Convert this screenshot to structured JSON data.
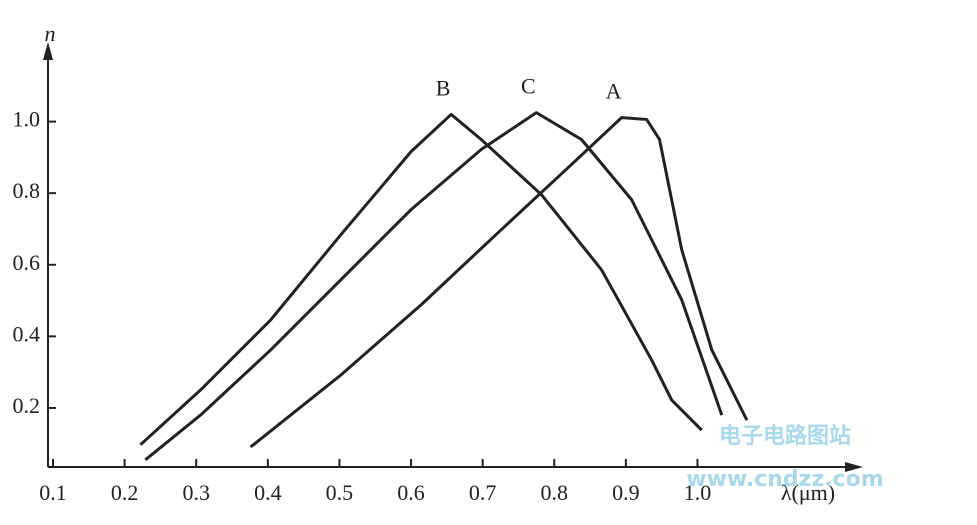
{
  "chart_data": {
    "type": "line",
    "ylabel": "n",
    "xlabel": "λ(μm)",
    "xlim": [
      0.093,
      1.22
    ],
    "ylim": [
      0.035,
      1.2
    ],
    "xticks": [
      0.1,
      0.2,
      0.3,
      0.4,
      0.5,
      0.6,
      0.7,
      0.8,
      0.9,
      {
        "value": 1,
        "label": "1.0"
      }
    ],
    "yticks": [
      0.2,
      0.4,
      0.6,
      0.8,
      {
        "value": 1,
        "label": "1.0"
      }
    ],
    "grid": false,
    "series": [
      {
        "name": "B",
        "color": "#222222",
        "x": [
          0.222,
          0.306,
          0.404,
          0.502,
          0.6,
          0.656,
          0.698,
          0.782,
          0.866,
          0.936,
          0.964,
          1.006
        ],
        "values": [
          0.097,
          0.25,
          0.446,
          0.684,
          0.916,
          1.02,
          0.95,
          0.796,
          0.586,
          0.334,
          0.222,
          0.138
        ]
      },
      {
        "name": "C",
        "color": "#222222",
        "x": [
          0.229,
          0.306,
          0.404,
          0.502,
          0.6,
          0.698,
          0.775,
          0.838,
          0.908,
          0.978,
          1.034
        ],
        "values": [
          0.055,
          0.18,
          0.362,
          0.558,
          0.754,
          0.922,
          1.025,
          0.95,
          0.782,
          0.502,
          0.18
        ]
      },
      {
        "name": "A",
        "color": "#222222",
        "x": [
          0.376,
          0.502,
          0.614,
          0.726,
          0.824,
          0.894,
          0.929,
          0.947,
          0.978,
          1.02,
          1.069
        ],
        "values": [
          0.091,
          0.292,
          0.488,
          0.698,
          0.88,
          1.011,
          1.006,
          0.95,
          0.642,
          0.362,
          0.166
        ]
      }
    ]
  },
  "watermark": {
    "title": "电子电路图站",
    "url": "www.cndzz.com"
  }
}
